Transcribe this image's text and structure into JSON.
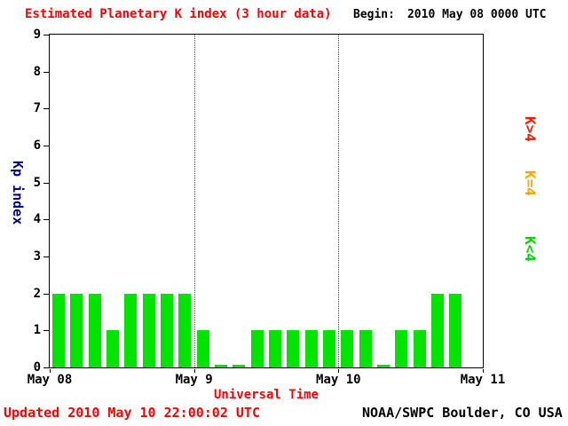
{
  "header": {
    "title": "Estimated Planetary K index (3 hour data)",
    "begin_label": "Begin:",
    "begin_value": "2010 May 08 0000 UTC"
  },
  "chart_data": {
    "type": "bar",
    "title": "Estimated Planetary K index (3 hour data)",
    "begin": "2010 May 08 0000 UTC",
    "xlabel": "Universal Time",
    "ylabel": "Kp index",
    "ylim": [
      0,
      9
    ],
    "y_ticks": [
      0,
      1,
      2,
      3,
      4,
      5,
      6,
      7,
      8,
      9
    ],
    "x_ticks": [
      "May 08",
      "May 9",
      "May 10",
      "May 11"
    ],
    "days": 3,
    "slots_per_day": 8,
    "hours_per_slot": 3,
    "grid": "dotted-day-separators",
    "bar_color": "#00e400",
    "values": [
      2,
      2,
      2,
      1,
      2,
      2,
      2,
      2,
      1,
      0,
      0,
      1,
      1,
      1,
      1,
      1,
      1,
      1,
      0,
      1,
      1,
      2,
      2
    ],
    "legend_position": "right",
    "legend": [
      {
        "label": "K>4",
        "color": "#ff1500"
      },
      {
        "label": "K=4",
        "color": "#ffa500"
      },
      {
        "label": "K<4",
        "color": "#00d400"
      }
    ]
  },
  "footer": {
    "updated": "Updated 2010 May 10 22:00:02 UTC",
    "credit": "NOAA/SWPC Boulder, CO USA"
  }
}
